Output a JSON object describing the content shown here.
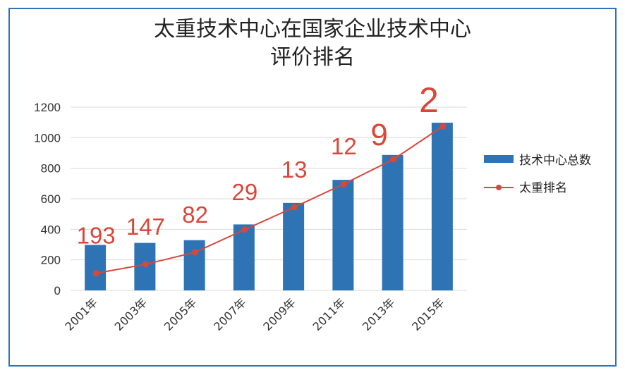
{
  "colors": {
    "bar": "#2e74b5",
    "line": "#d9473a",
    "grid": "#d9d9d9",
    "frame": "#2e74b5"
  },
  "chart_data": {
    "type": "bar",
    "title_line1": "太重技术中心在国家企业技术中心",
    "title_line2": "评价排名",
    "categories": [
      "2001年",
      "2003年",
      "2005年",
      "2007年",
      "2009年",
      "2011年",
      "2013年",
      "2015年"
    ],
    "series": [
      {
        "name": "技术中心总数",
        "type": "bar",
        "values": [
          298,
          311,
          329,
          432,
          573,
          724,
          887,
          1098
        ]
      },
      {
        "name": "太重排名",
        "type": "line",
        "values": [
          112,
          171,
          250,
          398,
          545,
          697,
          858,
          1075
        ],
        "labels": [
          "193",
          "147",
          "82",
          "29",
          "13",
          "12",
          "9",
          "2"
        ]
      }
    ],
    "yticks": [
      "0",
      "200",
      "400",
      "600",
      "800",
      "1000",
      "1200"
    ],
    "ylim": [
      0,
      1200
    ],
    "grid": true,
    "legend_position": "right"
  }
}
